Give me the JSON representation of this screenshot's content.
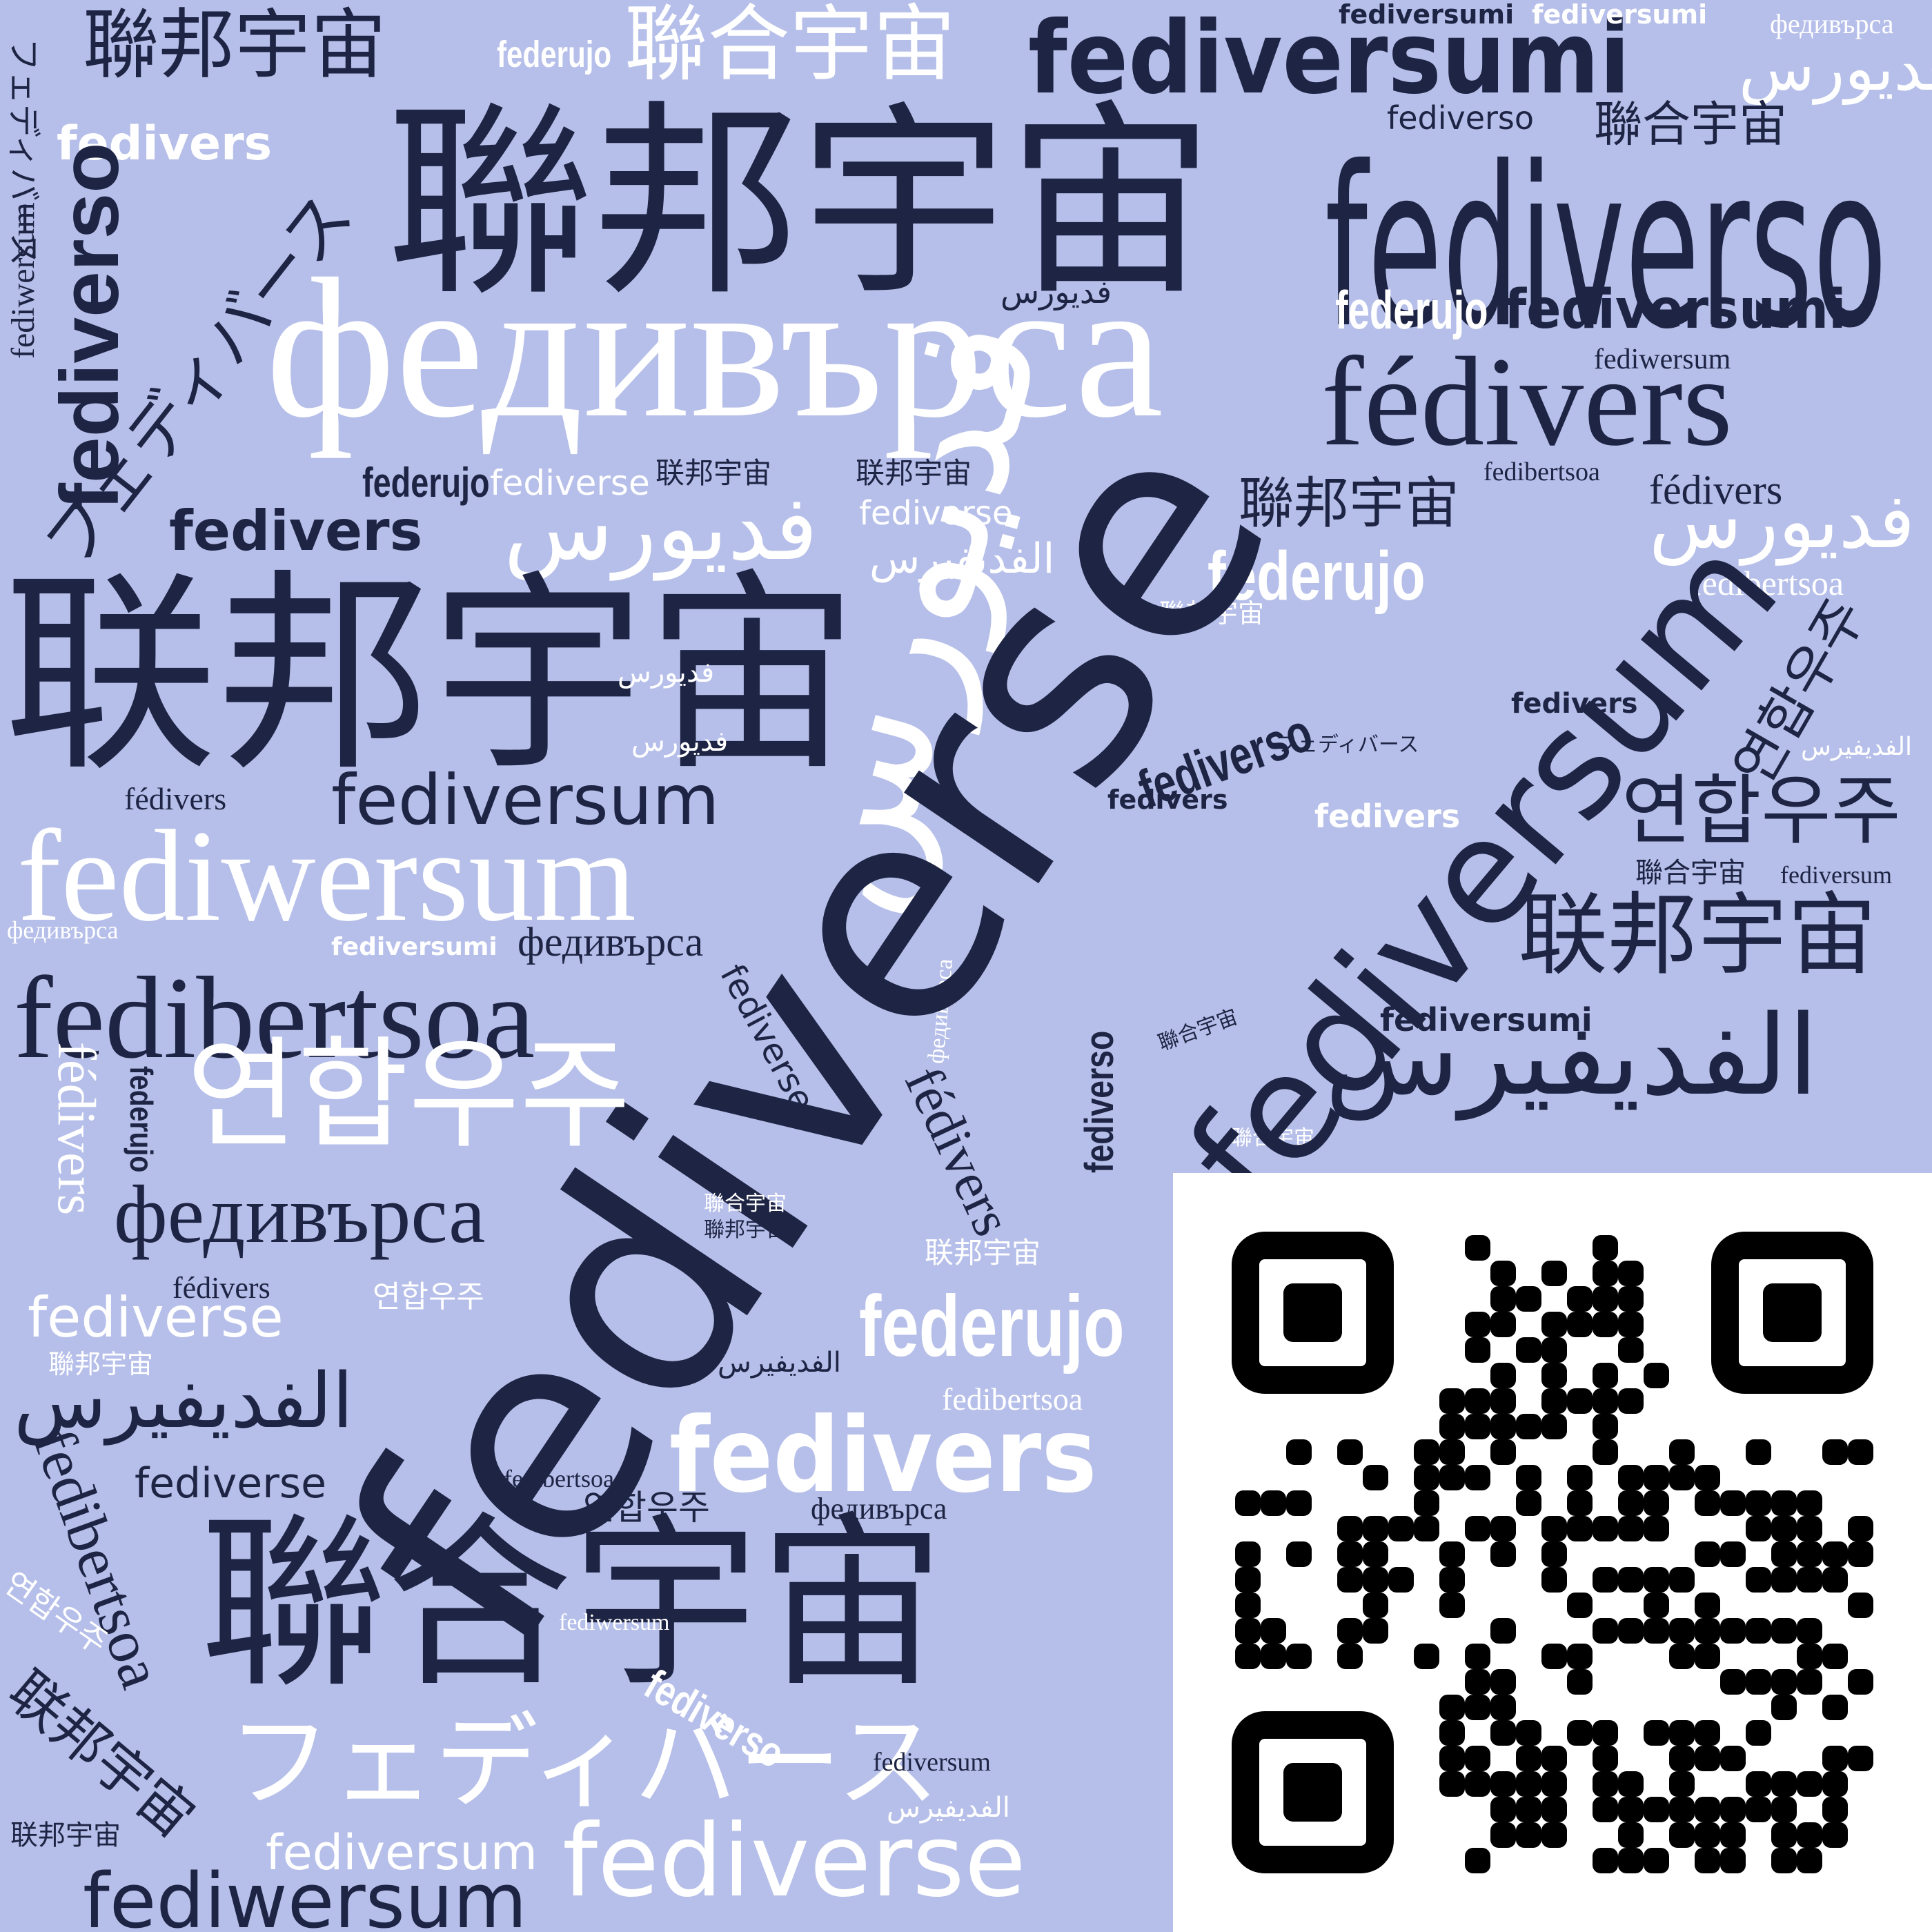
{
  "colors": {
    "background": "#b6bfe9",
    "dark": "#1e2444",
    "light": "#ffffff",
    "qr_module": "#000000",
    "qr_background": "#ffffff"
  },
  "words": {
    "fediverse_main": "fediverse",
    "fediversum_big": "fediversum",
    "lianbang_top": "聯邦宇宙",
    "lianbang_top_small": "聯邦宇宙",
    "lianhe_top": "聯合宇宙",
    "fediversumi_top": "fediversumi",
    "fediversumi_tiny1": "fediversumi",
    "fediversumi_tiny2": "fediversumi",
    "fedivursa_tiny_tr": "федивърса",
    "farsi_tr": "فديورس",
    "federujo_top": "federujo",
    "fedivers_tl": "fedivers",
    "fediverso_top": "fediverso",
    "lianhe_right_small": "聯合宇宙",
    "fediverso_right_big": "fediverso",
    "fediverso_left_rot": "fediverso",
    "fediwersum_left_rot": "fediwersum",
    "katakana_left_rot": "フェディバース",
    "katakana_diag": "フェディバース",
    "farsi_center_small": "فديورس",
    "federujo_right_mid": "federujo",
    "fediversumi_right_mid": "fediversumi",
    "fediwersum_right_small": "fediwersum",
    "fedivursa_big": "федивърса",
    "fedivers_accent_big": "fédivers",
    "federujo_mid_left": "federujo",
    "fediverse_mid_small": "fediverse",
    "lianbang_simpl_mid": "联邦宇宙",
    "lianbang_simpl_mid2": "联邦宇宙",
    "fediverse_mid_light": "fediverse",
    "fedibertsoa_right_small": "fedibertsoa",
    "fedivers_accent_right": "fédivers",
    "lianbang_right_mid": "聯邦宇宙",
    "fedivers_left_bold": "fedivers",
    "farsi_big_mid": "فديورس",
    "farsi_right": "فديورس",
    "alfediverse_mid_light": "الفديفيرس",
    "lianbang_simpl_big": "联邦宇宙",
    "farsi_rot_big": "فديورس",
    "federujo_right_light": "federujo",
    "fedibertsoa_right_light": "fedibertsoa",
    "lianbang_small_light": "聯邦宇宙",
    "farsi_small_light1": "فديورس",
    "farsi_small_light2": "فديورس",
    "fediverso_rot_center": "fediverso",
    "katakana_small_center": "フェディバース",
    "fedivers_bold_center1": "fedivers",
    "fedivers_bold_center2": "fedivers",
    "fedivers_light_right": "fedivers",
    "korean_rot_right": "연합우주",
    "alfediverse_light_right": "الفديفيرس",
    "korean_right": "연합우주",
    "lianhe_right_tiny": "聯合宇宙",
    "fediversum_right_tiny": "fediversum",
    "fediversum_left_mid": "fediversum",
    "fedivers_accent_small_left": "fédivers",
    "fediwersum_big_light": "fediwersum",
    "fedivursa_tiny_left": "федивърса",
    "fediversumi_light_left": "fediversumi",
    "fedivursa_mid": "федивърса",
    "lianbang_simpl_right": "联邦宇宙",
    "fedivursa_rot_light": "федивърса",
    "fedibertsoa_big": "fedibertsoa",
    "fediverse_rot_light": "fediverse",
    "lianhe_rot_tiny": "聯合宇宙",
    "fediversumi_right_bold": "fediversumi",
    "alfediverse_big_right": "الفديفيرس",
    "fediverso_rot_right": "fediverso",
    "lianhe_tiny_light": "聯合宇宙",
    "korean_big_light": "연합우주",
    "fedivers_rot_light_left": "fédivers",
    "federujo_rot_tiny": "federujo",
    "fedivers_accent_rot": "fédivers",
    "fedivursa_big_left": "федивърса",
    "lianhe_small_center": "聯合宇宙",
    "lianbang_small_center": "聯邦宇宙",
    "lianbang_simpl_light_small": "联邦宇宙",
    "fedivers_accent_small": "fédivers",
    "korean_small_light": "연합우주",
    "fediverse_left_light": "fediverse",
    "federujo_big_light": "federujo",
    "lianbang_tiny_light_left": "聯邦宇宙",
    "alfediverse_small_center": "الفديفيرس",
    "alfediverse_left_big": "الفديفيرس",
    "fedibertsoa_light_right": "fedibertsoa",
    "fedivers_big_light": "fedivers",
    "fedibertsoa_rot_left": "fedibertsoa",
    "fediverse_left_small": "fediverse",
    "fedibertsoa_small": "fedibertsoa",
    "korean_small_dark": "연합우주",
    "fedivursa_small_dark": "федивърса",
    "lianhe_big_bottom": "聯合宇宙",
    "korean_rot_tiny_light": "연합우주",
    "fediwersum_small_light": "fediwersum",
    "lianbang_simpl_rot_left": "联邦宇宙",
    "fediverso_rot_light_bottom": "fediverso",
    "katakana_big_light": "フェディバース",
    "fediversum_small_dark": "fediversum",
    "alfediverse_small_light": "الفديفيرس",
    "lianbang_simpl_tiny": "联邦宇宙",
    "fediversum_bottom_light": "fediversum",
    "fediverse_bottom_light": "fediverse",
    "fediwersum_bottom_dark": "fediwersum"
  },
  "qr_code": {
    "label": "QR code"
  }
}
